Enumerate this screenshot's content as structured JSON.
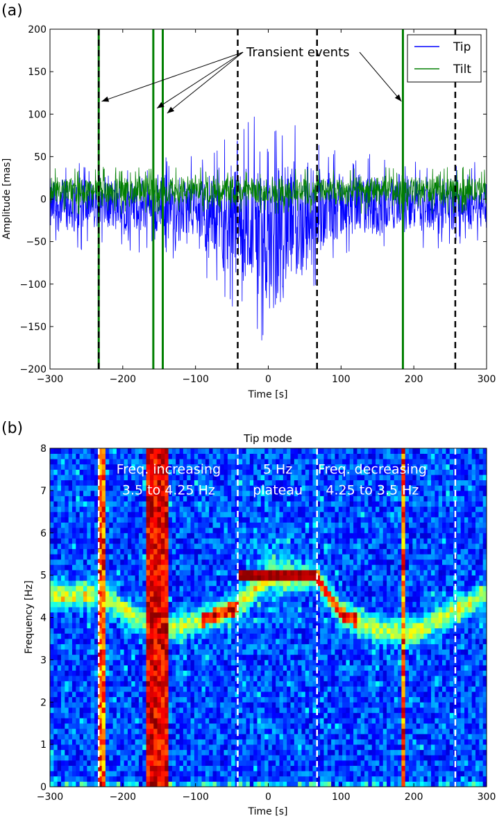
{
  "panel_labels": {
    "a": "(a)",
    "b": "(b)"
  },
  "chart_data": [
    {
      "type": "line",
      "panel": "(a)",
      "title": "",
      "xlabel": "Time [s]",
      "ylabel": "Amplitude [mas]",
      "xlim": [
        -300,
        300
      ],
      "ylim": [
        -200,
        200
      ],
      "xticks": [
        -300,
        -200,
        -100,
        0,
        100,
        200,
        300
      ],
      "yticks": [
        -200,
        -150,
        -100,
        -50,
        0,
        50,
        100,
        150,
        200
      ],
      "legend": {
        "position": "top-right",
        "entries": [
          "Tip",
          "Tilt"
        ]
      },
      "series": [
        {
          "name": "Tip",
          "color": "#0000ff",
          "noise_envelope": {
            "t": [
              -300,
              -200,
              -100,
              -40,
              0,
              40,
              60,
              100,
              200,
              300
            ],
            "upper": [
              30,
              30,
              35,
              55,
              75,
              55,
              50,
              40,
              30,
              30
            ],
            "lower": [
              -45,
              -45,
              -60,
              -110,
              -150,
              -110,
              -80,
              -55,
              -45,
              -40
            ]
          }
        },
        {
          "name": "Tilt",
          "color": "#007f00",
          "noise_envelope": {
            "t": [
              -300,
              300
            ],
            "upper": [
              30,
              30
            ],
            "lower": [
              -10,
              -10
            ]
          }
        }
      ],
      "transients": [
        {
          "t": -233,
          "series": "Tilt"
        },
        {
          "t": -158,
          "series": "Tilt"
        },
        {
          "t": -145,
          "series": "Tilt"
        },
        {
          "t": 185,
          "series": "Tilt"
        }
      ],
      "dashed_lines_t": [
        -233,
        -42,
        67,
        257
      ],
      "annotation": {
        "text": "Transient events",
        "x": -30,
        "y": 168,
        "arrow_targets": [
          [
            -229,
            115
          ],
          [
            -153,
            107
          ],
          [
            -139,
            101
          ],
          [
            183,
            115
          ]
        ]
      }
    },
    {
      "type": "heatmap",
      "panel": "(b)",
      "title": "Tip mode",
      "xlabel": "Time [s]",
      "ylabel": "Frequency [Hz]",
      "xlim": [
        -300,
        300
      ],
      "ylim": [
        0,
        8
      ],
      "xticks": [
        -300,
        -200,
        -100,
        0,
        100,
        200,
        300
      ],
      "yticks": [
        0,
        1,
        2,
        3,
        4,
        5,
        6,
        7,
        8
      ],
      "colormap": "jet",
      "dashed_lines_t": [
        -233,
        -42,
        67,
        257
      ],
      "strong_columns_t": [
        -230,
        -163,
        -150,
        -140,
        185
      ],
      "ridge": {
        "t": [
          -300,
          -230,
          -160,
          -150,
          -120,
          -80,
          -42,
          0,
          67,
          100,
          150,
          200,
          300
        ],
        "f": [
          4.55,
          4.55,
          3.75,
          3.7,
          3.8,
          4.0,
          4.25,
          4.95,
          4.95,
          4.1,
          3.7,
          3.65,
          4.55
        ]
      },
      "annotations": [
        {
          "lines": [
            "Freq. increasing",
            "3.5 to 4.25 Hz"
          ],
          "x": -137,
          "y": 7.4
        },
        {
          "lines": [
            "5 Hz",
            "plateau"
          ],
          "x": 13,
          "y": 7.4
        },
        {
          "lines": [
            "Freq. decreasing",
            "4.25 to 3.5 Hz"
          ],
          "x": 143,
          "y": 7.4
        }
      ]
    }
  ]
}
